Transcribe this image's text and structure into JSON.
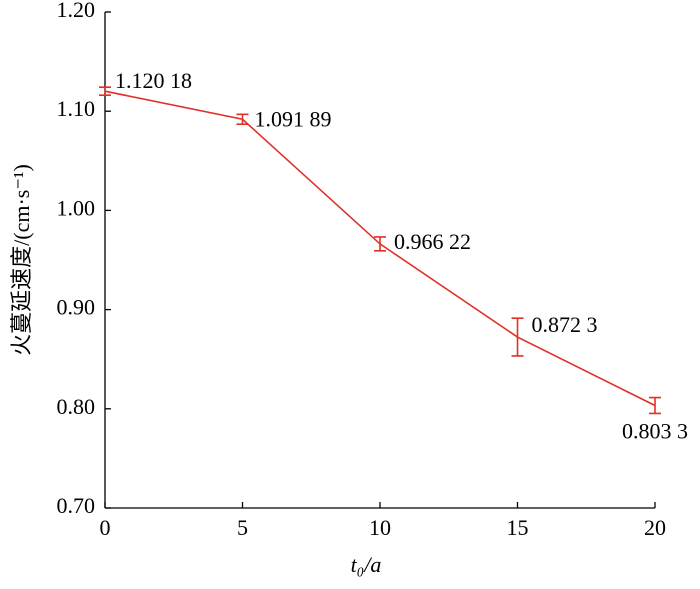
{
  "chart_data": {
    "type": "line",
    "x_label": "t₀/a",
    "y_label": "火蔓延速度/(cm·s⁻¹)",
    "x": [
      0,
      5,
      10,
      15,
      20
    ],
    "series": [
      {
        "color": "#e0302a",
        "values": [
          1.12018,
          1.09189,
          0.96622,
          0.8723,
          0.8033
        ],
        "value_labels": [
          "1.120 18",
          "1.091 89",
          "0.966 22",
          "0.872 3",
          "0.803 3"
        ],
        "errors": [
          0.004,
          0.005,
          0.007,
          0.019,
          0.008
        ]
      }
    ],
    "xlim": [
      0,
      20
    ],
    "xticks": [
      0,
      5,
      10,
      15,
      20
    ],
    "ylim": [
      0.7,
      1.2
    ],
    "yticks": [
      {
        "value": 0.7,
        "label": "0.70"
      },
      {
        "value": 0.8,
        "label": "0.80"
      },
      {
        "value": 0.9,
        "label": "0.90"
      },
      {
        "value": 1.0,
        "label": "1.00"
      },
      {
        "value": 1.1,
        "label": "1.10"
      },
      {
        "value": 1.2,
        "label": "1.20"
      }
    ]
  }
}
